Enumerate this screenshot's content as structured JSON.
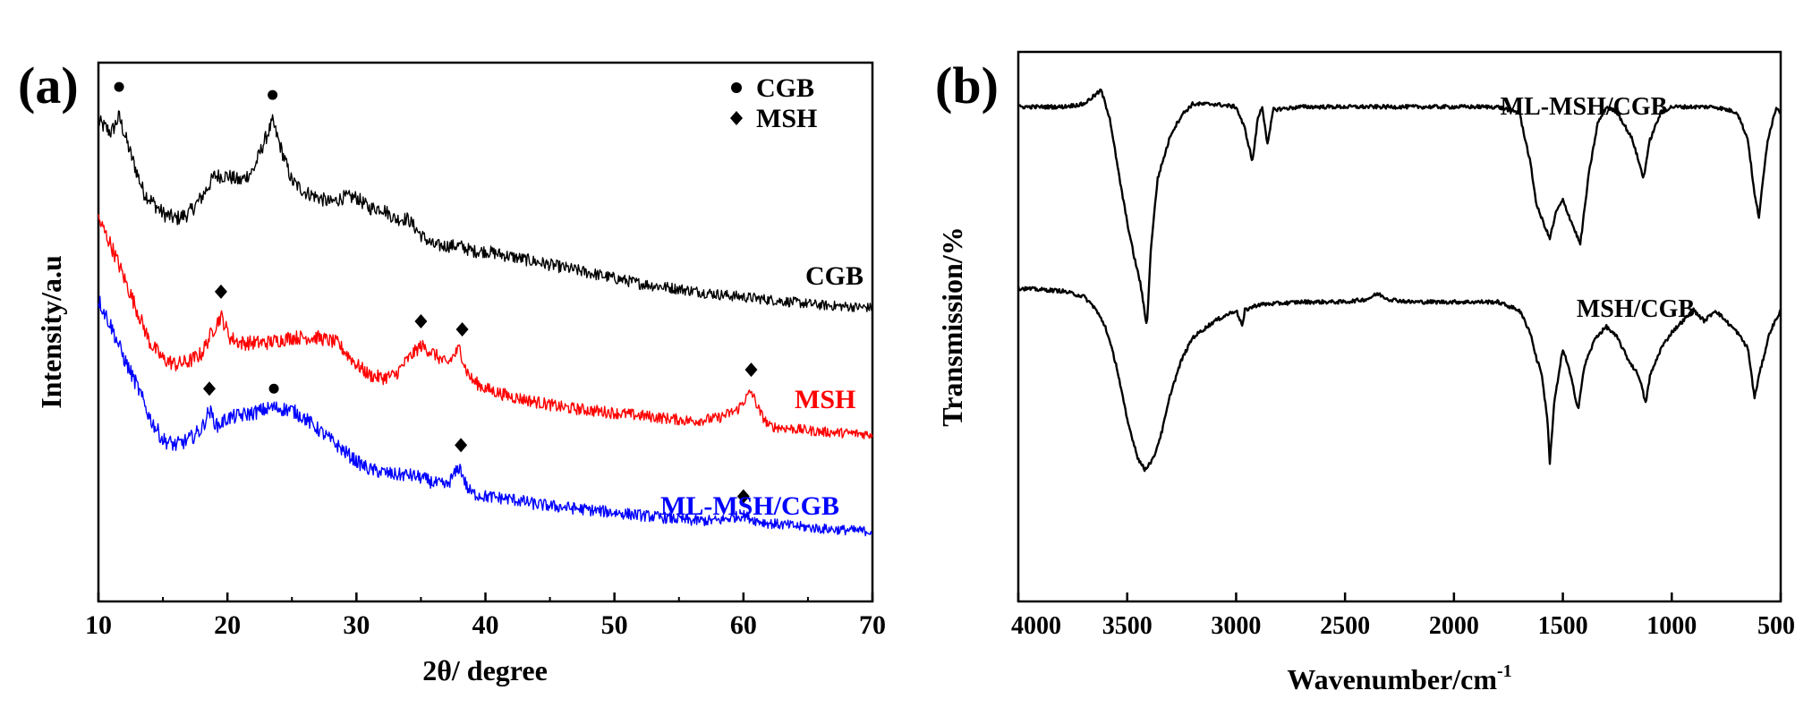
{
  "chart_data": [
    {
      "panel_label": "(a)",
      "type": "line",
      "xlabel": "2θ/ degree",
      "ylabel": "Intensity/a.u",
      "xlim": [
        10,
        70
      ],
      "xticks": [
        "10",
        "20",
        "30",
        "40",
        "50",
        "60",
        "70"
      ],
      "legend": {
        "position": "top-right",
        "entries": [
          {
            "marker": "circle",
            "label": "CGB"
          },
          {
            "marker": "diamond",
            "label": "MSH"
          }
        ]
      },
      "series": [
        {
          "name": "CGB",
          "color": "#000000",
          "points": [
            [
              10,
              8.9
            ],
            [
              11,
              8.7
            ],
            [
              11.6,
              9.0
            ],
            [
              12.5,
              8.3
            ],
            [
              13.5,
              7.6
            ],
            [
              15,
              7.2
            ],
            [
              16,
              7.1
            ],
            [
              17,
              7.2
            ],
            [
              18,
              7.5
            ],
            [
              19,
              7.9
            ],
            [
              20,
              7.9
            ],
            [
              21,
              7.8
            ],
            [
              22,
              8.0
            ],
            [
              22.8,
              8.5
            ],
            [
              23.5,
              8.9
            ],
            [
              24.3,
              8.3
            ],
            [
              25,
              7.8
            ],
            [
              26,
              7.6
            ],
            [
              27,
              7.5
            ],
            [
              28,
              7.4
            ],
            [
              29,
              7.5
            ],
            [
              30,
              7.5
            ],
            [
              31,
              7.3
            ],
            [
              32,
              7.3
            ],
            [
              33,
              7.1
            ],
            [
              34,
              7.1
            ],
            [
              35,
              6.8
            ],
            [
              36,
              6.6
            ],
            [
              37,
              6.6
            ],
            [
              38,
              6.6
            ],
            [
              39,
              6.5
            ],
            [
              40,
              6.5
            ],
            [
              42,
              6.4
            ],
            [
              44,
              6.3
            ],
            [
              46,
              6.2
            ],
            [
              48,
              6.1
            ],
            [
              50,
              6.0
            ],
            [
              52,
              5.9
            ],
            [
              55,
              5.8
            ],
            [
              58,
              5.7
            ],
            [
              62,
              5.6
            ],
            [
              66,
              5.5
            ],
            [
              70,
              5.45
            ]
          ]
        },
        {
          "name": "MSH",
          "color": "#ff0000",
          "points": [
            [
              10,
              7.1
            ],
            [
              11,
              6.6
            ],
            [
              12,
              6.0
            ],
            [
              13,
              5.4
            ],
            [
              14,
              4.8
            ],
            [
              15,
              4.5
            ],
            [
              16,
              4.4
            ],
            [
              17,
              4.45
            ],
            [
              18,
              4.6
            ],
            [
              18.8,
              5.0
            ],
            [
              19.5,
              5.3
            ],
            [
              20.2,
              4.9
            ],
            [
              21,
              4.8
            ],
            [
              23,
              4.8
            ],
            [
              25,
              4.9
            ],
            [
              27,
              4.9
            ],
            [
              28.5,
              4.8
            ],
            [
              30,
              4.4
            ],
            [
              31,
              4.2
            ],
            [
              32,
              4.15
            ],
            [
              33,
              4.2
            ],
            [
              34,
              4.5
            ],
            [
              35,
              4.75
            ],
            [
              36,
              4.6
            ],
            [
              37,
              4.4
            ],
            [
              38,
              4.7
            ],
            [
              38.5,
              4.3
            ],
            [
              39,
              4.1
            ],
            [
              40,
              3.95
            ],
            [
              42,
              3.8
            ],
            [
              44,
              3.7
            ],
            [
              46,
              3.6
            ],
            [
              48,
              3.55
            ],
            [
              50,
              3.5
            ],
            [
              52,
              3.45
            ],
            [
              54,
              3.4
            ],
            [
              56,
              3.35
            ],
            [
              58,
              3.4
            ],
            [
              59.5,
              3.55
            ],
            [
              60.6,
              3.9
            ],
            [
              61.3,
              3.5
            ],
            [
              62,
              3.25
            ],
            [
              64,
              3.2
            ],
            [
              66,
              3.15
            ],
            [
              70,
              3.1
            ]
          ]
        },
        {
          "name": "ML-MSH/CGB",
          "color": "#0000ff",
          "points": [
            [
              10,
              5.6
            ],
            [
              11,
              5.1
            ],
            [
              12,
              4.5
            ],
            [
              13,
              4.0
            ],
            [
              14,
              3.4
            ],
            [
              15,
              3.0
            ],
            [
              16,
              2.9
            ],
            [
              17,
              3.0
            ],
            [
              18,
              3.2
            ],
            [
              18.6,
              3.55
            ],
            [
              19.2,
              3.25
            ],
            [
              20,
              3.4
            ],
            [
              22,
              3.5
            ],
            [
              23.5,
              3.6
            ],
            [
              25,
              3.55
            ],
            [
              26,
              3.4
            ],
            [
              27,
              3.2
            ],
            [
              28,
              3.0
            ],
            [
              29,
              2.8
            ],
            [
              30,
              2.6
            ],
            [
              31,
              2.45
            ],
            [
              32,
              2.4
            ],
            [
              33,
              2.35
            ],
            [
              34,
              2.35
            ],
            [
              35,
              2.3
            ],
            [
              36,
              2.2
            ],
            [
              37,
              2.15
            ],
            [
              38,
              2.5
            ],
            [
              38.6,
              2.1
            ],
            [
              39,
              2.0
            ],
            [
              40,
              1.95
            ],
            [
              42,
              1.9
            ],
            [
              44,
              1.8
            ],
            [
              46,
              1.75
            ],
            [
              48,
              1.7
            ],
            [
              50,
              1.65
            ],
            [
              52,
              1.6
            ],
            [
              54,
              1.55
            ],
            [
              56,
              1.5
            ],
            [
              58,
              1.5
            ],
            [
              60,
              1.6
            ],
            [
              61,
              1.5
            ],
            [
              62,
              1.45
            ],
            [
              64,
              1.4
            ],
            [
              66,
              1.35
            ],
            [
              70,
              1.3
            ]
          ]
        }
      ],
      "labels": [
        {
          "text": "CGB",
          "color": "#000000"
        },
        {
          "text": "MSH",
          "color": "#ff0000"
        },
        {
          "text": "ML-MSH/CGB",
          "color": "#0000ff"
        }
      ],
      "markers": [
        {
          "marker": "circle",
          "x": 11.6,
          "y": 9.55
        },
        {
          "marker": "circle",
          "x": 23.5,
          "y": 9.4
        },
        {
          "marker": "diamond",
          "x": 19.5,
          "y": 5.75
        },
        {
          "marker": "diamond",
          "x": 35,
          "y": 5.2
        },
        {
          "marker": "diamond",
          "x": 38.2,
          "y": 5.05
        },
        {
          "marker": "diamond",
          "x": 60.6,
          "y": 4.3
        },
        {
          "marker": "diamond",
          "x": 18.6,
          "y": 3.95
        },
        {
          "marker": "circle",
          "x": 23.6,
          "y": 3.95
        },
        {
          "marker": "diamond",
          "x": 38.1,
          "y": 2.9
        },
        {
          "marker": "diamond",
          "x": 60,
          "y": 1.95
        }
      ]
    },
    {
      "panel_label": "(b)",
      "type": "line",
      "xlabel": "Wavenumber/cm",
      "xlabel_sup": "-1",
      "ylabel": "Transmission/%",
      "xlim": [
        4000,
        500
      ],
      "xticks": [
        "4000",
        "3500",
        "3000",
        "2500",
        "2000",
        "1500",
        "1000",
        "500"
      ],
      "series": [
        {
          "name": "ML-MSH/CGB",
          "color": "#000000",
          "points": [
            [
              4000,
              9.0
            ],
            [
              3800,
              9.0
            ],
            [
              3700,
              9.05
            ],
            [
              3620,
              9.3
            ],
            [
              3580,
              8.8
            ],
            [
              3540,
              7.8
            ],
            [
              3500,
              6.9
            ],
            [
              3470,
              6.3
            ],
            [
              3440,
              5.8
            ],
            [
              3410,
              5.0
            ],
            [
              3390,
              6.5
            ],
            [
              3360,
              7.7
            ],
            [
              3300,
              8.5
            ],
            [
              3250,
              8.85
            ],
            [
              3200,
              9.05
            ],
            [
              3100,
              9.05
            ],
            [
              3000,
              9.0
            ],
            [
              2960,
              8.6
            ],
            [
              2925,
              8.0
            ],
            [
              2900,
              8.8
            ],
            [
              2880,
              9.0
            ],
            [
              2855,
              8.3
            ],
            [
              2830,
              8.95
            ],
            [
              2700,
              9.0
            ],
            [
              2500,
              9.0
            ],
            [
              2200,
              9.0
            ],
            [
              2000,
              9.0
            ],
            [
              1800,
              9.0
            ],
            [
              1700,
              8.9
            ],
            [
              1650,
              8.0
            ],
            [
              1620,
              7.2
            ],
            [
              1590,
              6.9
            ],
            [
              1560,
              6.6
            ],
            [
              1530,
              7.1
            ],
            [
              1500,
              7.3
            ],
            [
              1460,
              6.9
            ],
            [
              1420,
              6.5
            ],
            [
              1380,
              7.8
            ],
            [
              1340,
              8.7
            ],
            [
              1300,
              9.0
            ],
            [
              1250,
              8.9
            ],
            [
              1180,
              8.4
            ],
            [
              1130,
              7.7
            ],
            [
              1100,
              8.4
            ],
            [
              1050,
              8.9
            ],
            [
              1000,
              9.0
            ],
            [
              900,
              9.0
            ],
            [
              800,
              9.0
            ],
            [
              700,
              8.9
            ],
            [
              650,
              8.4
            ],
            [
              620,
              7.4
            ],
            [
              600,
              7.0
            ],
            [
              560,
              8.4
            ],
            [
              520,
              9.0
            ],
            [
              500,
              8.9
            ]
          ]
        },
        {
          "name": "MSH/CGB",
          "color": "#000000",
          "points": [
            [
              4000,
              5.7
            ],
            [
              3800,
              5.65
            ],
            [
              3700,
              5.55
            ],
            [
              3650,
              5.35
            ],
            [
              3600,
              5.0
            ],
            [
              3550,
              4.3
            ],
            [
              3500,
              3.3
            ],
            [
              3450,
              2.6
            ],
            [
              3420,
              2.4
            ],
            [
              3380,
              2.6
            ],
            [
              3340,
              3.1
            ],
            [
              3300,
              3.8
            ],
            [
              3250,
              4.4
            ],
            [
              3200,
              4.8
            ],
            [
              3100,
              5.1
            ],
            [
              3000,
              5.3
            ],
            [
              2970,
              5.0
            ],
            [
              2960,
              5.3
            ],
            [
              2900,
              5.4
            ],
            [
              2700,
              5.45
            ],
            [
              2500,
              5.45
            ],
            [
              2400,
              5.5
            ],
            [
              2350,
              5.6
            ],
            [
              2300,
              5.5
            ],
            [
              2200,
              5.45
            ],
            [
              2000,
              5.45
            ],
            [
              1800,
              5.45
            ],
            [
              1700,
              5.3
            ],
            [
              1650,
              4.9
            ],
            [
              1620,
              4.4
            ],
            [
              1600,
              4.2
            ],
            [
              1570,
              3.3
            ],
            [
              1560,
              2.5
            ],
            [
              1540,
              3.6
            ],
            [
              1500,
              4.6
            ],
            [
              1470,
              4.2
            ],
            [
              1430,
              3.5
            ],
            [
              1400,
              4.3
            ],
            [
              1350,
              4.8
            ],
            [
              1300,
              5.0
            ],
            [
              1250,
              4.8
            ],
            [
              1200,
              4.4
            ],
            [
              1150,
              4.1
            ],
            [
              1120,
              3.6
            ],
            [
              1100,
              4.1
            ],
            [
              1050,
              4.6
            ],
            [
              1000,
              4.9
            ],
            [
              950,
              5.1
            ],
            [
              900,
              5.3
            ],
            [
              850,
              5.1
            ],
            [
              800,
              5.3
            ],
            [
              750,
              5.1
            ],
            [
              700,
              4.9
            ],
            [
              650,
              4.6
            ],
            [
              620,
              3.7
            ],
            [
              600,
              4.1
            ],
            [
              550,
              4.9
            ],
            [
              500,
              5.3
            ]
          ]
        }
      ],
      "labels": [
        {
          "text": "ML-MSH/CGB",
          "color": "#000000"
        },
        {
          "text": "MSH/CGB",
          "color": "#000000"
        }
      ]
    }
  ]
}
